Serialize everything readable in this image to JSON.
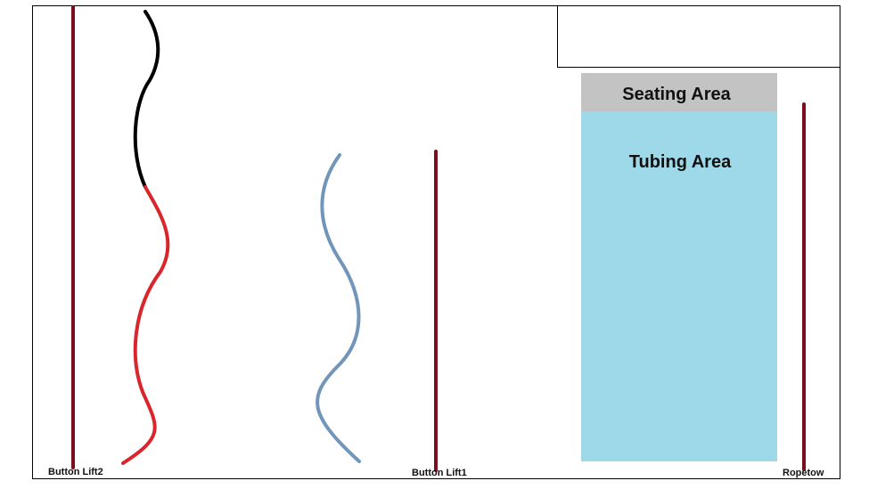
{
  "labels": {
    "seating_area": "Seating Area",
    "tubing_area": "Tubing Area",
    "lift2": "Button Lift2",
    "lift1": "Button Lift1",
    "ropetow": "Ropetow"
  },
  "colors": {
    "lift": "#7a0e1e",
    "seating_area": "#c3c3c3",
    "tubing_area": "#9dd9e9",
    "trail_black": "#000000",
    "trail_red": "#d9262c",
    "trail_blue": "#7196b9"
  }
}
